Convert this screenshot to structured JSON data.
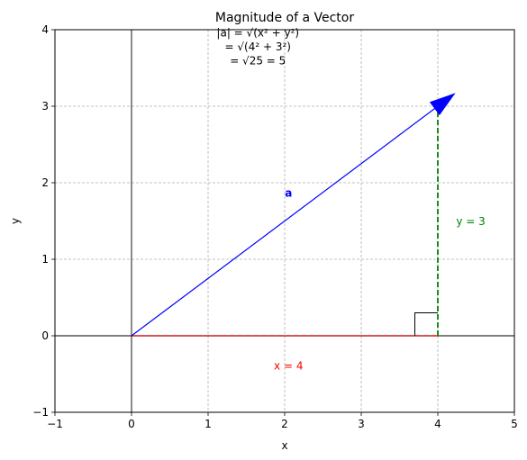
{
  "chart_data": {
    "type": "line",
    "title": "Magnitude of a Vector",
    "xlabel": "x",
    "ylabel": "y",
    "xlim": [
      -1,
      5
    ],
    "ylim": [
      -1,
      4
    ],
    "grid": true,
    "xticks": [
      "−1",
      "0",
      "1",
      "2",
      "3",
      "4",
      "5"
    ],
    "yticks": [
      "−1",
      "0",
      "1",
      "2",
      "3",
      "4"
    ],
    "vector": {
      "label": "a",
      "from": [
        0,
        0
      ],
      "to": [
        4,
        3
      ],
      "color": "#0000ff"
    },
    "components": [
      {
        "label": "x = 4",
        "from": [
          0,
          0
        ],
        "to": [
          4,
          0
        ],
        "color": "#ff0000"
      },
      {
        "label": "y = 3",
        "from": [
          4,
          0
        ],
        "to": [
          4,
          3
        ],
        "color": "#008000"
      }
    ],
    "right_angle_marker": {
      "corner": [
        4,
        0
      ],
      "size": 0.3
    },
    "annotation": {
      "lines": [
        "|a| = √(x² + y²)",
        "= √(4² + 3²)",
        "= √25 = 5"
      ],
      "color": "#000000"
    }
  }
}
